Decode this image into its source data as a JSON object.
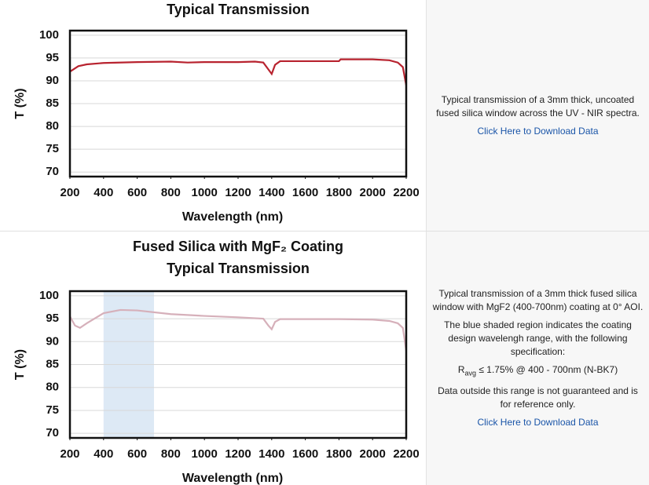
{
  "chart_data": [
    {
      "type": "line",
      "title": "Typical Transmission",
      "xlabel": "Wavelength (nm)",
      "ylabel": "T (%)",
      "x": [
        200,
        250,
        300,
        400,
        600,
        800,
        900,
        1000,
        1200,
        1300,
        1350,
        1380,
        1400,
        1420,
        1450,
        1600,
        1800,
        1810,
        2000,
        2100,
        2150,
        2180,
        2200
      ],
      "values": [
        92,
        93.2,
        93.6,
        93.9,
        94.1,
        94.2,
        94,
        94.1,
        94.1,
        94.2,
        94,
        92.5,
        91.5,
        93.5,
        94.3,
        94.3,
        94.3,
        94.7,
        94.7,
        94.5,
        94,
        93,
        89
      ],
      "color": "#b8232f",
      "xlim": [
        200,
        2200
      ],
      "ylim": [
        69,
        101
      ],
      "xticks": [
        200,
        400,
        600,
        800,
        1000,
        1200,
        1400,
        1600,
        1800,
        2000,
        2200
      ],
      "yticks": [
        70,
        75,
        80,
        85,
        90,
        95,
        100
      ],
      "grid": true
    },
    {
      "type": "line",
      "title": "Fused Silica with MgF₂ Coating",
      "subtitle": "Typical Transmission",
      "xlabel": "Wavelength (nm)",
      "ylabel": "T (%)",
      "x": [
        200,
        230,
        260,
        300,
        400,
        500,
        600,
        800,
        1000,
        1200,
        1350,
        1380,
        1400,
        1420,
        1450,
        1600,
        1800,
        2000,
        2100,
        2150,
        2180,
        2200
      ],
      "values": [
        95.5,
        93.5,
        93,
        94,
        96.2,
        96.9,
        96.8,
        96,
        95.6,
        95.3,
        95,
        93.5,
        92.7,
        94.3,
        94.9,
        94.9,
        94.9,
        94.8,
        94.5,
        94,
        93,
        88
      ],
      "color": "#d6b0ba",
      "band": [
        400,
        700
      ],
      "band_color": "#dde9f5",
      "xlim": [
        200,
        2200
      ],
      "ylim": [
        69,
        101
      ],
      "xticks": [
        200,
        400,
        600,
        800,
        1000,
        1200,
        1400,
        1600,
        1800,
        2000,
        2200
      ],
      "yticks": [
        70,
        75,
        80,
        85,
        90,
        95,
        100
      ],
      "grid": true
    }
  ],
  "panels": [
    {
      "paragraphs": [
        "Typical transmission of a 3mm thick, uncoated fused silica window across the UV - NIR spectra."
      ],
      "link": "Click Here to Download Data"
    },
    {
      "paragraphs": [
        "Typical transmission of a 3mm thick fused silica window with MgF2 (400-700nm) coating at 0° AOI.",
        "The blue shaded region indicates the coating design wavelengh range, with the following specification:"
      ],
      "spec": {
        "symbol": "R",
        "subscript": "avg",
        "text": "≤ 1.75% @ 400 - 700nm (N-BK7)"
      },
      "note": "Data outside this range is not guaranteed and is for reference only.",
      "link": "Click Here to Download Data"
    }
  ]
}
